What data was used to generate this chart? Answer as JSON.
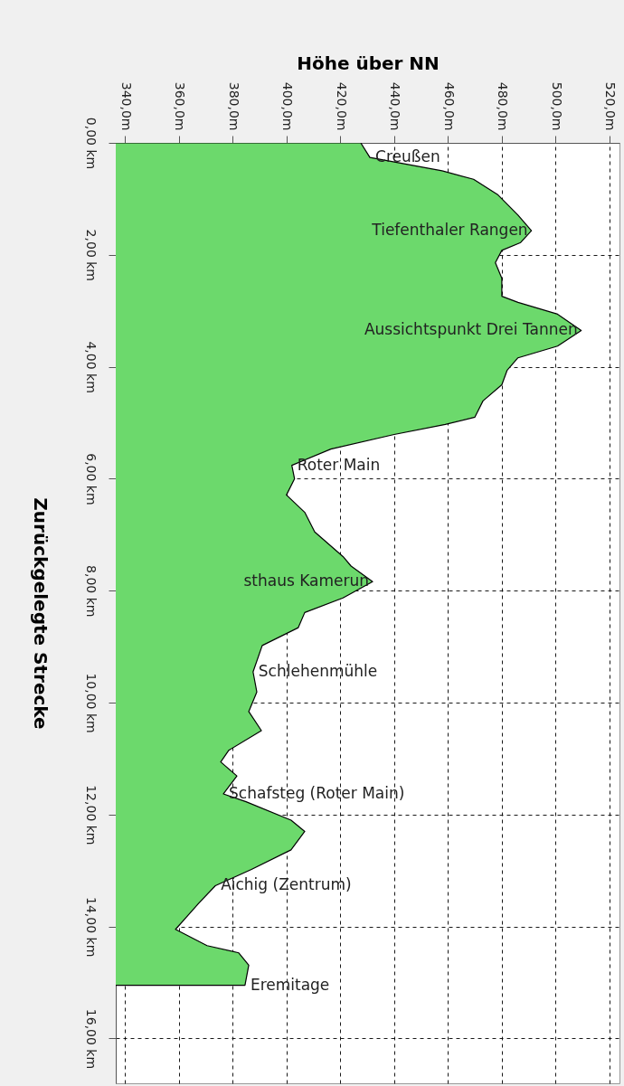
{
  "chart_data": {
    "type": "area",
    "orientation": "horizontal",
    "xlabel": "Höhe über NN",
    "ylabel": "Zurückgelegte Strecke",
    "x": [
      0,
      0.26,
      0.5,
      0.65,
      0.93,
      1.29,
      1.57,
      1.78,
      1.92,
      2.14,
      2.42,
      2.74,
      2.85,
      3.06,
      3.35,
      3.63,
      3.84,
      4.06,
      4.32,
      4.61,
      4.9,
      5.03,
      5.21,
      5.47,
      5.76,
      6.0,
      6.29,
      6.6,
      6.95,
      7.39,
      7.56,
      7.84,
      8.13,
      8.39,
      8.66,
      8.98,
      9.45,
      9.81,
      10.16,
      10.5,
      10.85,
      11.06,
      11.31,
      11.63,
      11.77,
      12.1,
      12.3,
      12.63,
      12.98,
      13.27,
      13.58,
      14.05,
      14.34,
      14.47,
      14.69,
      15.05
    ],
    "series": [
      {
        "color": "#6cd96c",
        "values": [
          427.6,
          431,
          457.8,
          469.5,
          478.6,
          486,
          491,
          487,
          480,
          477.6,
          480,
          480,
          486,
          500.7,
          509.5,
          500.7,
          486,
          482,
          480,
          473,
          470,
          459,
          440,
          416.5,
          402,
          403,
          400,
          406.8,
          410.5,
          421,
          424,
          432,
          421,
          406.8,
          404.4,
          391,
          387.6,
          389,
          386,
          390.7,
          378.6,
          375.6,
          381.6,
          376.6,
          385,
          401.7,
          406.8,
          401.7,
          387,
          373.6,
          367.5,
          358.8,
          370.5,
          382.3,
          386,
          384.6
        ]
      }
    ],
    "xlim": [
      336.6,
      523.7
    ],
    "xticks": [
      {
        "value": 340,
        "label": "340,0m"
      },
      {
        "value": 360,
        "label": "360,0m"
      },
      {
        "value": 380,
        "label": "380,0m"
      },
      {
        "value": 400,
        "label": "400,0m"
      },
      {
        "value": 420,
        "label": "420,0m"
      },
      {
        "value": 440,
        "label": "440,0m"
      },
      {
        "value": 460,
        "label": "460,0m"
      },
      {
        "value": 480,
        "label": "480,0m"
      },
      {
        "value": 500,
        "label": "500,0m"
      },
      {
        "value": 520,
        "label": "520,0m"
      }
    ],
    "ylim": [
      16.8,
      0
    ],
    "yticks": [
      {
        "value": 0,
        "label": "0,00 km"
      },
      {
        "value": 2,
        "label": "2,00 km"
      },
      {
        "value": 4,
        "label": "4,00 km"
      },
      {
        "value": 6,
        "label": "6,00 km"
      },
      {
        "value": 8,
        "label": "8,00 km"
      },
      {
        "value": 10,
        "label": "10,00 km"
      },
      {
        "value": 12,
        "label": "12,00 km"
      },
      {
        "value": 14,
        "label": "14,00 km"
      },
      {
        "value": 16,
        "label": "16,00 km"
      }
    ],
    "grid": true,
    "annotations": [
      {
        "text": "Creußen",
        "x": 431,
        "y": 0.26
      },
      {
        "text": "Tiefenthaler Rangen",
        "x": 491,
        "y": 1.57
      },
      {
        "text": "Aussichtspunkt Drei Tannen",
        "x": 509.5,
        "y": 3.35
      },
      {
        "text": "Roter Main",
        "x": 402,
        "y": 5.76
      },
      {
        "text": "sthaus Kamerun",
        "x": 432,
        "y": 7.84
      },
      {
        "text": "Schlehenmühle",
        "x": 387.6,
        "y": 9.45
      },
      {
        "text": "Schafsteg (Roter Main)",
        "x": 376.6,
        "y": 11.63
      },
      {
        "text": "Aichig (Zentrum)",
        "x": 373.6,
        "y": 13.27
      },
      {
        "text": "Eremitage",
        "x": 384.6,
        "y": 15.05
      }
    ]
  }
}
